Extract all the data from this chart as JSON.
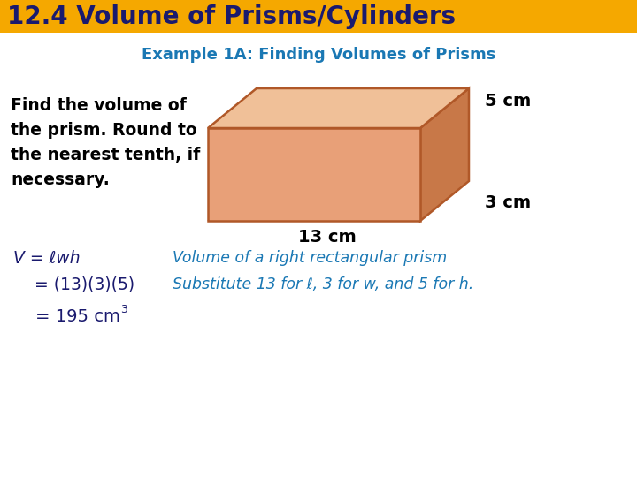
{
  "title": "12.4 Volume of Prisms/Cylinders",
  "title_bg": "#F5A800",
  "title_color": "#1a1a6e",
  "subtitle": "Example 1A: Finding Volumes of Prisms",
  "subtitle_color": "#1a78b4",
  "body_text": "Find the volume of\nthe prism. Round to\nthe nearest tenth, if\nnecessary.",
  "body_color": "#000000",
  "label_13": "13 cm",
  "label_5": "5 cm",
  "label_3": "3 cm",
  "label_color": "#000000",
  "line1_left": "V = ℓwh",
  "line1_right": "Volume of a right rectangular prism",
  "line2_left": "    = (13)(3)(5)",
  "line2_right": "Substitute 13 for ℓ, 3 for w, and 5 for h.",
  "line3": "    = 195 cm",
  "line_color": "#1a1a6e",
  "italic_color": "#1a78b4",
  "bg_color": "#ffffff",
  "prism_face_color": "#e8a078",
  "prism_edge_color": "#b05828",
  "prism_top_color": "#f0c098",
  "prism_right_color": "#c87848"
}
